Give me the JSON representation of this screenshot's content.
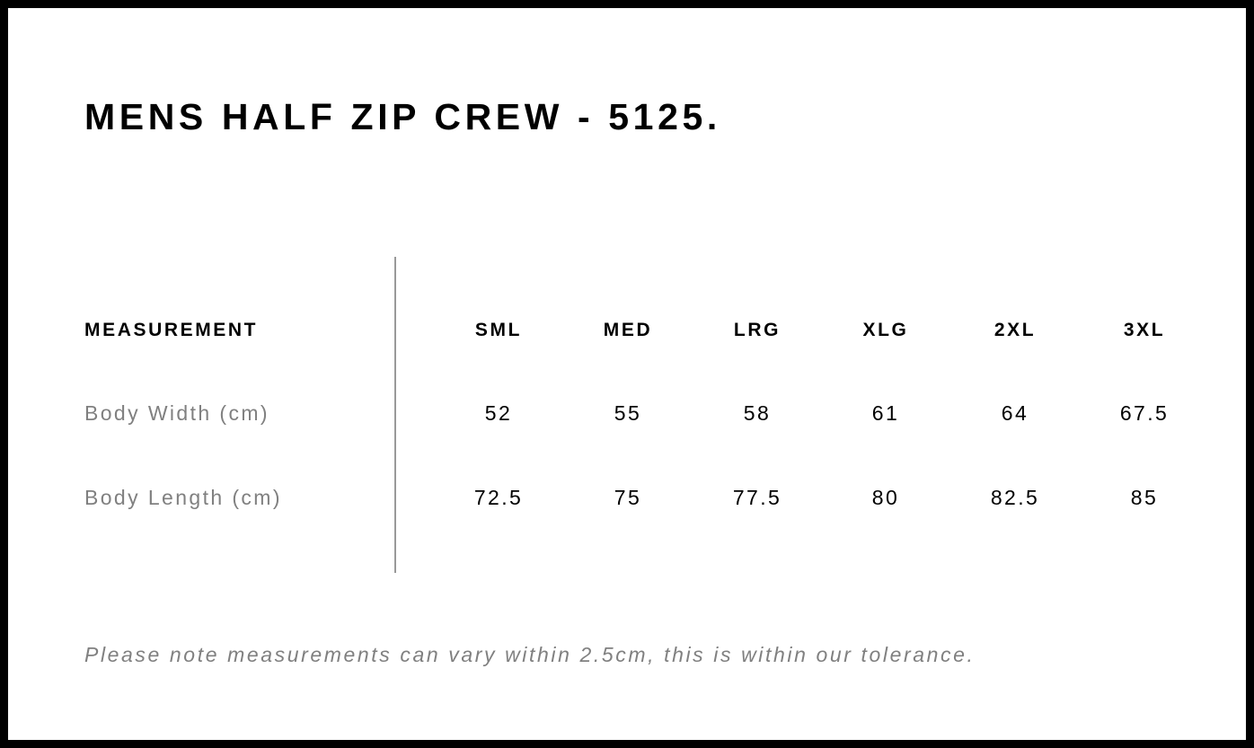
{
  "title": "MENS HALF ZIP CREW - 5125.",
  "table": {
    "measurement_header": "MEASUREMENT",
    "sizes": [
      "SML",
      "MED",
      "LRG",
      "XLG",
      "2XL",
      "3XL"
    ],
    "rows": [
      {
        "label": "Body Width (cm)",
        "values": [
          "52",
          "55",
          "58",
          "61",
          "64",
          "67.5"
        ]
      },
      {
        "label": "Body Length (cm)",
        "values": [
          "72.5",
          "75",
          "77.5",
          "80",
          "82.5",
          "85"
        ]
      }
    ]
  },
  "note": "Please note measurements can vary within 2.5cm, this is within our tolerance."
}
